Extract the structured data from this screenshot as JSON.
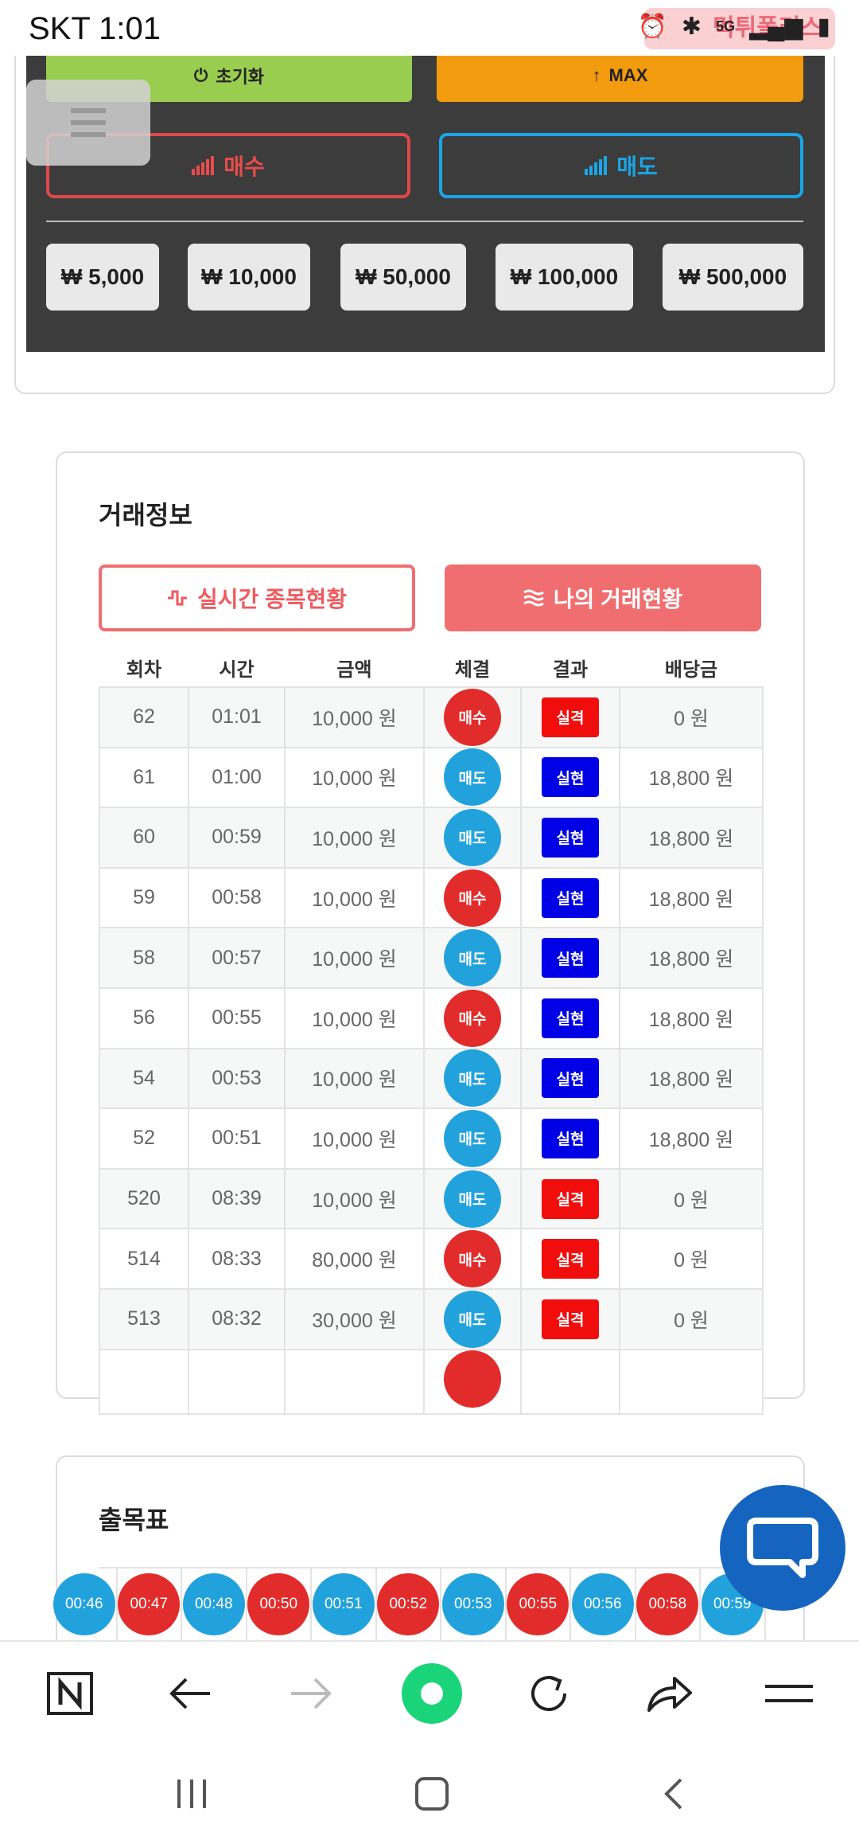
{
  "status_bar": {
    "carrier_time": "SKT 1:01",
    "network": "5G",
    "watermark": "먹튀폴리스"
  },
  "trade_panel": {
    "reset_label": "초기화",
    "max_label": "MAX",
    "buy_label": "매수",
    "sell_label": "매도",
    "amounts": [
      "₩ 5,000",
      "₩ 10,000",
      "₩ 50,000",
      "₩ 100,000",
      "₩ 500,000"
    ],
    "colors": {
      "reset": "#98cd50",
      "max": "#f29b0e",
      "buy": "#e04848",
      "sell": "#1aa6e6"
    }
  },
  "trade_info": {
    "title": "거래정보",
    "tab_live": "실시간 종목현황",
    "tab_mine": "나의 거래현황",
    "columns": [
      "회차",
      "시간",
      "금액",
      "체결",
      "결과",
      "배당금"
    ],
    "rows": [
      {
        "round": "62",
        "time": "01:01",
        "amount": "10,000 원",
        "side": "매수",
        "side_type": "buy",
        "result": "실격",
        "result_type": "fail",
        "payout": "0 원"
      },
      {
        "round": "61",
        "time": "01:00",
        "amount": "10,000 원",
        "side": "매도",
        "side_type": "sell",
        "result": "실현",
        "result_type": "win",
        "payout": "18,800 원"
      },
      {
        "round": "60",
        "time": "00:59",
        "amount": "10,000 원",
        "side": "매도",
        "side_type": "sell",
        "result": "실현",
        "result_type": "win",
        "payout": "18,800 원"
      },
      {
        "round": "59",
        "time": "00:58",
        "amount": "10,000 원",
        "side": "매수",
        "side_type": "buy",
        "result": "실현",
        "result_type": "win",
        "payout": "18,800 원"
      },
      {
        "round": "58",
        "time": "00:57",
        "amount": "10,000 원",
        "side": "매도",
        "side_type": "sell",
        "result": "실현",
        "result_type": "win",
        "payout": "18,800 원"
      },
      {
        "round": "56",
        "time": "00:55",
        "amount": "10,000 원",
        "side": "매수",
        "side_type": "buy",
        "result": "실현",
        "result_type": "win",
        "payout": "18,800 원"
      },
      {
        "round": "54",
        "time": "00:53",
        "amount": "10,000 원",
        "side": "매도",
        "side_type": "sell",
        "result": "실현",
        "result_type": "win",
        "payout": "18,800 원"
      },
      {
        "round": "52",
        "time": "00:51",
        "amount": "10,000 원",
        "side": "매도",
        "side_type": "sell",
        "result": "실현",
        "result_type": "win",
        "payout": "18,800 원"
      },
      {
        "round": "520",
        "time": "08:39",
        "amount": "10,000 원",
        "side": "매도",
        "side_type": "sell",
        "result": "실격",
        "result_type": "fail",
        "payout": "0 원"
      },
      {
        "round": "514",
        "time": "08:33",
        "amount": "80,000 원",
        "side": "매수",
        "side_type": "buy",
        "result": "실격",
        "result_type": "fail",
        "payout": "0 원"
      },
      {
        "round": "513",
        "time": "08:32",
        "amount": "30,000 원",
        "side": "매도",
        "side_type": "sell",
        "result": "실격",
        "result_type": "fail",
        "payout": "0 원"
      },
      {
        "round": "",
        "time": "",
        "amount": "",
        "side": "",
        "side_type": "buy",
        "result": "",
        "result_type": "none",
        "payout": ""
      }
    ]
  },
  "outcome_table": {
    "title": "출목표",
    "items": [
      {
        "label": "00:46",
        "type": "sell"
      },
      {
        "label": "00:47",
        "type": "buy"
      },
      {
        "label": "00:48",
        "type": "sell"
      },
      {
        "label": "00:50",
        "type": "buy"
      },
      {
        "label": "00:51",
        "type": "sell"
      },
      {
        "label": "00:52",
        "type": "buy"
      },
      {
        "label": "00:53",
        "type": "sell"
      },
      {
        "label": "00:55",
        "type": "buy"
      },
      {
        "label": "00:56",
        "type": "sell"
      },
      {
        "label": "00:58",
        "type": "buy"
      },
      {
        "label": "00:59",
        "type": "sell"
      }
    ]
  },
  "colors": {
    "buy": "#e22b2b",
    "sell": "#22a2dc",
    "fail": "#f20d0d",
    "win": "#0000e6",
    "tab": "#f06e70",
    "chat": "#1565c0"
  },
  "icons": {
    "toolbar": [
      "naver-home-icon",
      "back-arrow-icon",
      "forward-arrow-icon",
      "green-dot-icon",
      "reload-icon",
      "share-icon",
      "menu-icon"
    ],
    "navbar": [
      "recent-apps-icon",
      "home-icon",
      "back-icon"
    ]
  }
}
